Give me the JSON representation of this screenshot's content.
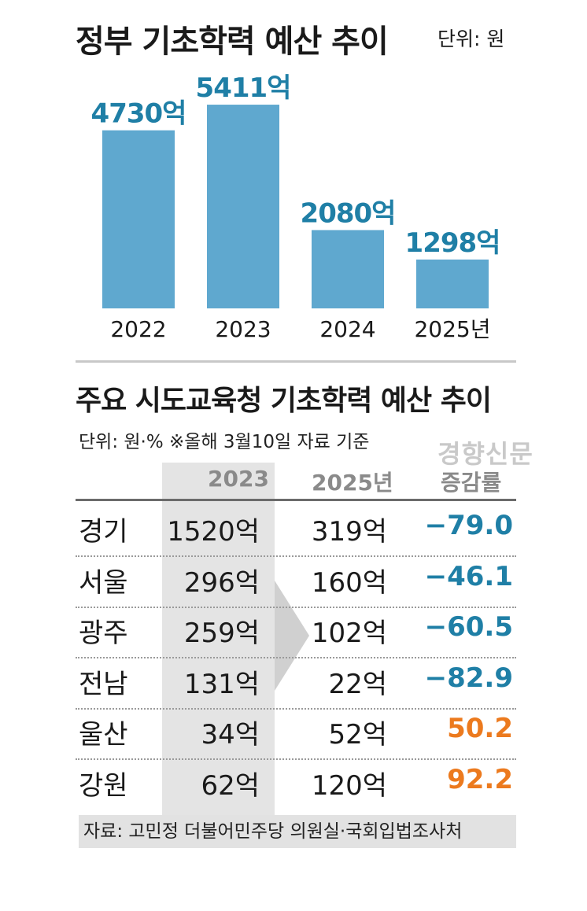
{
  "chart_data": [
    {
      "type": "bar",
      "title": "정부 기초학력 예산 추이",
      "unit_label": "단위: 원",
      "categories": [
        "2022",
        "2023",
        "2024",
        "2025년"
      ],
      "values": [
        4730,
        5411,
        2080,
        1298
      ],
      "data_labels": [
        "4730억",
        "5411억",
        "2080억",
        "1298억"
      ],
      "ylim": [
        0,
        5600
      ],
      "bar_color": "#5fa8cf",
      "label_color": "#1f7fa6",
      "grid": false
    },
    {
      "type": "table",
      "title": "주요 시도교육청 기초학력 예산 추이",
      "note": "단위: 원·% ※올해 3월10일 자료 기준",
      "columns": [
        "",
        "2023",
        "2025년",
        "증감률"
      ],
      "rows": [
        {
          "region": "경기",
          "v2023": "1520억",
          "v2025": "319억",
          "rate": "−79.0",
          "sign": "neg"
        },
        {
          "region": "서울",
          "v2023": "296억",
          "v2025": "160억",
          "rate": "−46.1",
          "sign": "neg"
        },
        {
          "region": "광주",
          "v2023": "259억",
          "v2025": "102억",
          "rate": "−60.5",
          "sign": "neg"
        },
        {
          "region": "전남",
          "v2023": "131억",
          "v2025": "22억",
          "rate": "−82.9",
          "sign": "neg"
        },
        {
          "region": "울산",
          "v2023": "34억",
          "v2025": "52억",
          "rate": "50.2",
          "sign": "pos"
        },
        {
          "region": "강원",
          "v2023": "62억",
          "v2025": "120억",
          "rate": "92.2",
          "sign": "pos"
        }
      ],
      "negative_color": "#1f7fa6",
      "positive_color": "#ec7a1e",
      "source": "자료: 고민정 더불어민주당 의원실·국회입법조사처"
    }
  ],
  "watermark": "경향신문"
}
